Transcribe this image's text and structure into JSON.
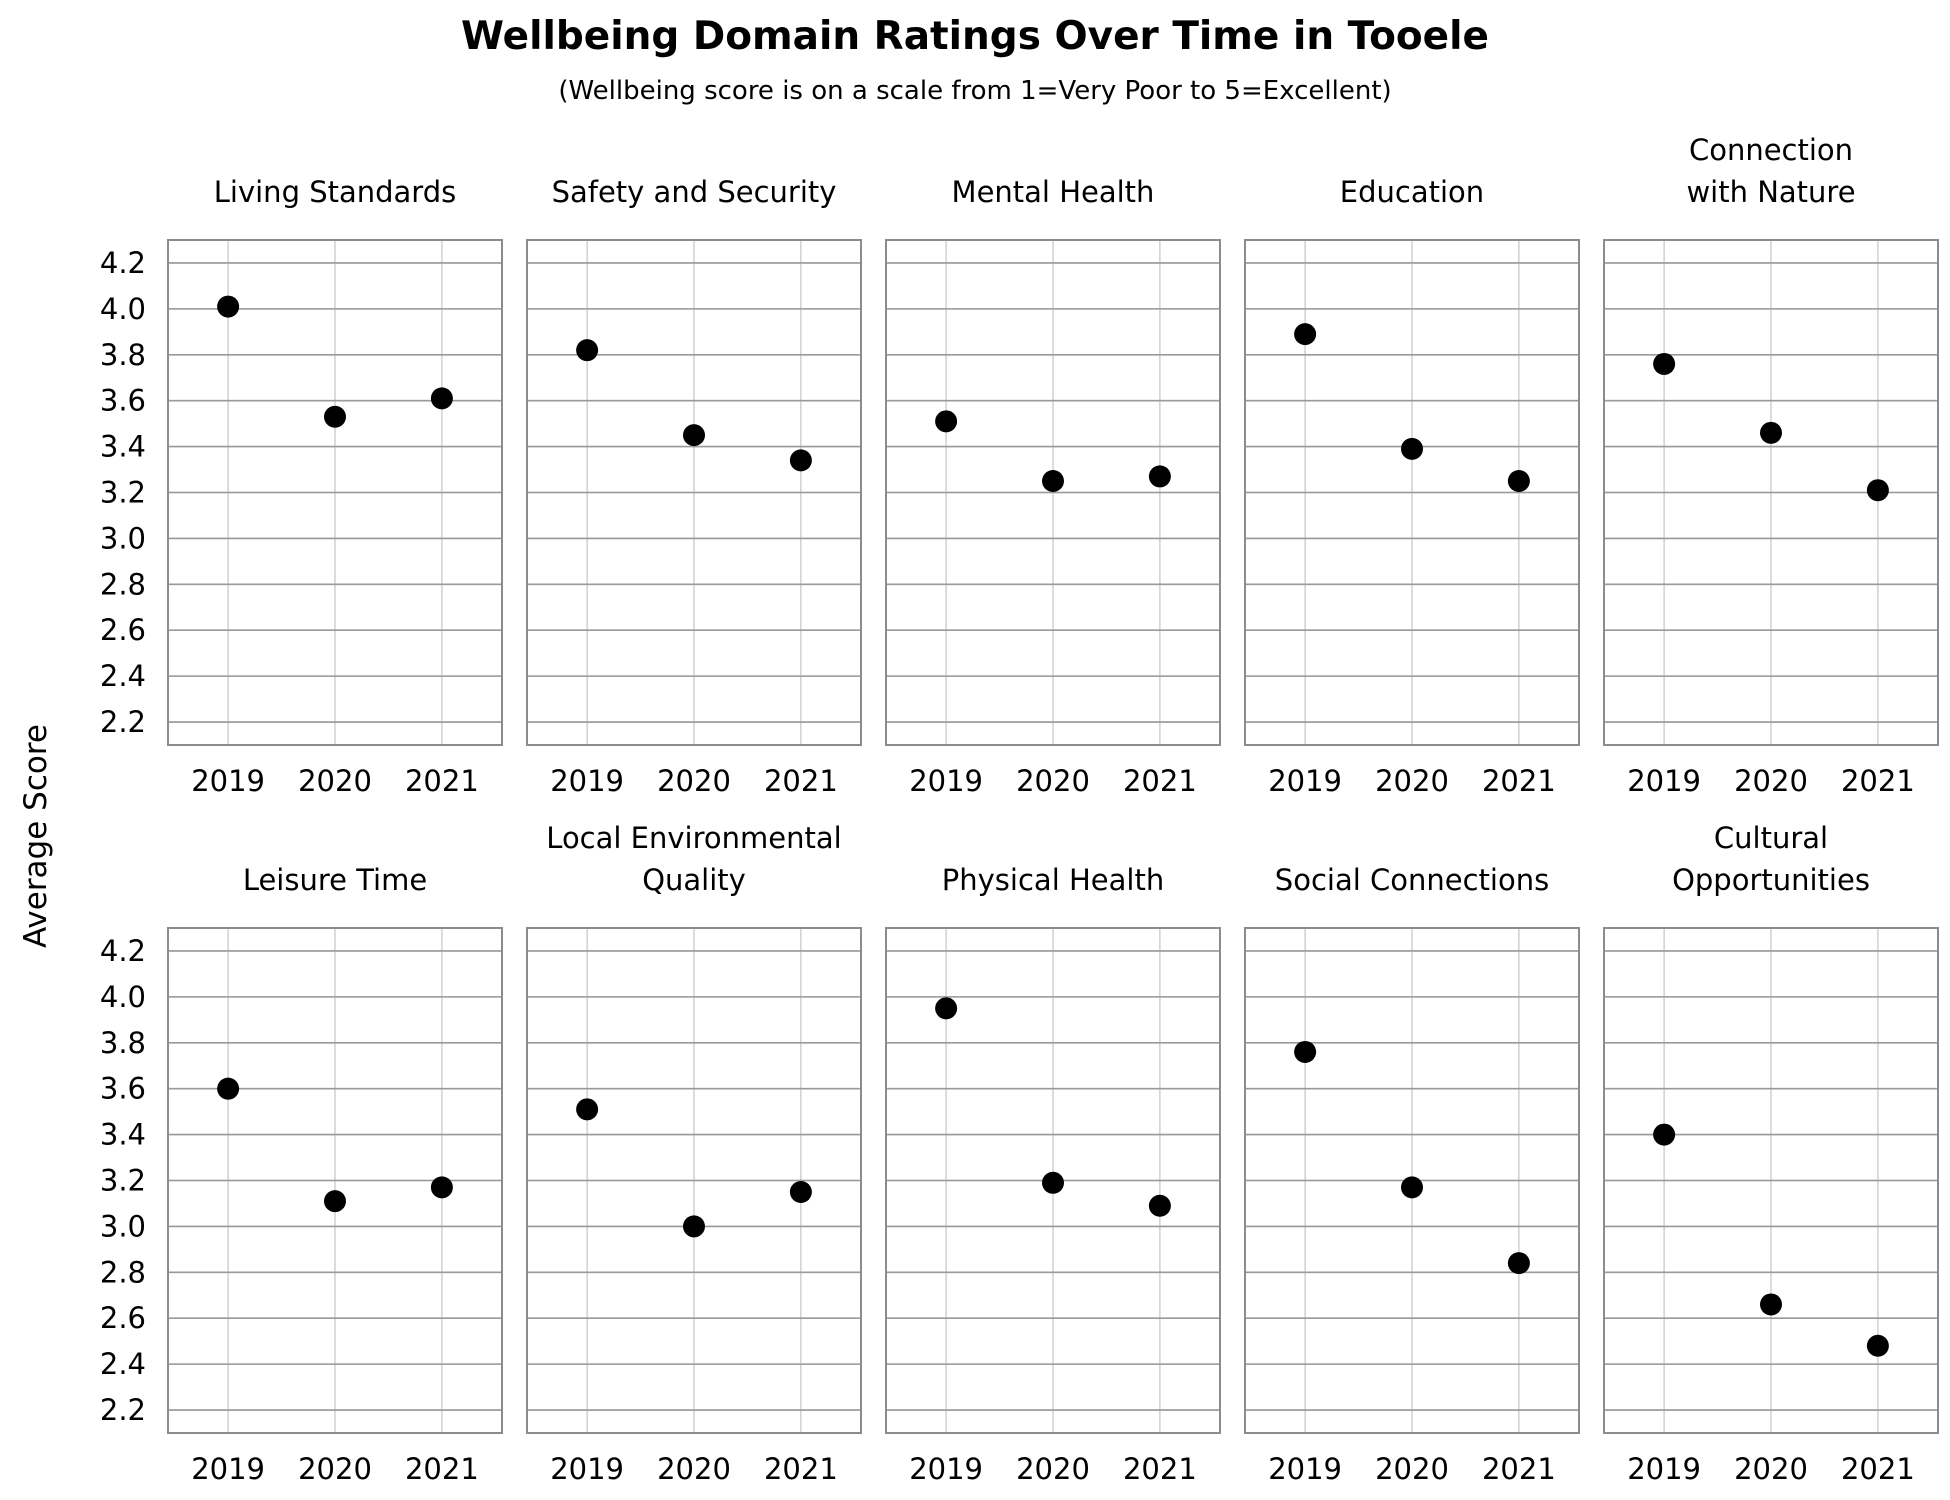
{
  "chart_data": {
    "type": "scatter",
    "title": "Wellbeing Domain Ratings Over Time in Tooele",
    "subtitle": "(Wellbeing score is on a scale from 1=Very Poor to 5=Excellent)",
    "ylabel": "Average Score",
    "ylim": [
      2.1,
      4.3
    ],
    "yticks": [
      "2.2",
      "2.4",
      "2.6",
      "2.8",
      "3.0",
      "3.2",
      "3.4",
      "3.6",
      "3.8",
      "4.0",
      "4.2"
    ],
    "categories": [
      "2019",
      "2020",
      "2021"
    ],
    "grid": true,
    "panels": [
      {
        "title": [
          "Living Standards"
        ],
        "values": [
          4.01,
          3.53,
          3.61
        ]
      },
      {
        "title": [
          "Safety and Security"
        ],
        "values": [
          3.82,
          3.45,
          3.34
        ]
      },
      {
        "title": [
          "Mental Health"
        ],
        "values": [
          3.51,
          3.25,
          3.27
        ]
      },
      {
        "title": [
          "Education"
        ],
        "values": [
          3.89,
          3.39,
          3.25
        ]
      },
      {
        "title": [
          "Connection",
          "with Nature"
        ],
        "values": [
          3.76,
          3.46,
          3.21
        ]
      },
      {
        "title": [
          "Leisure Time"
        ],
        "values": [
          3.6,
          3.11,
          3.17
        ]
      },
      {
        "title": [
          "Local Environmental",
          "Quality"
        ],
        "values": [
          3.51,
          3.0,
          3.15
        ]
      },
      {
        "title": [
          "Physical Health"
        ],
        "values": [
          3.95,
          3.19,
          3.09
        ]
      },
      {
        "title": [
          "Social Connections"
        ],
        "values": [
          3.76,
          3.17,
          2.84
        ]
      },
      {
        "title": [
          "Cultural",
          "Opportunities"
        ],
        "values": [
          3.4,
          2.66,
          2.48
        ]
      }
    ]
  }
}
